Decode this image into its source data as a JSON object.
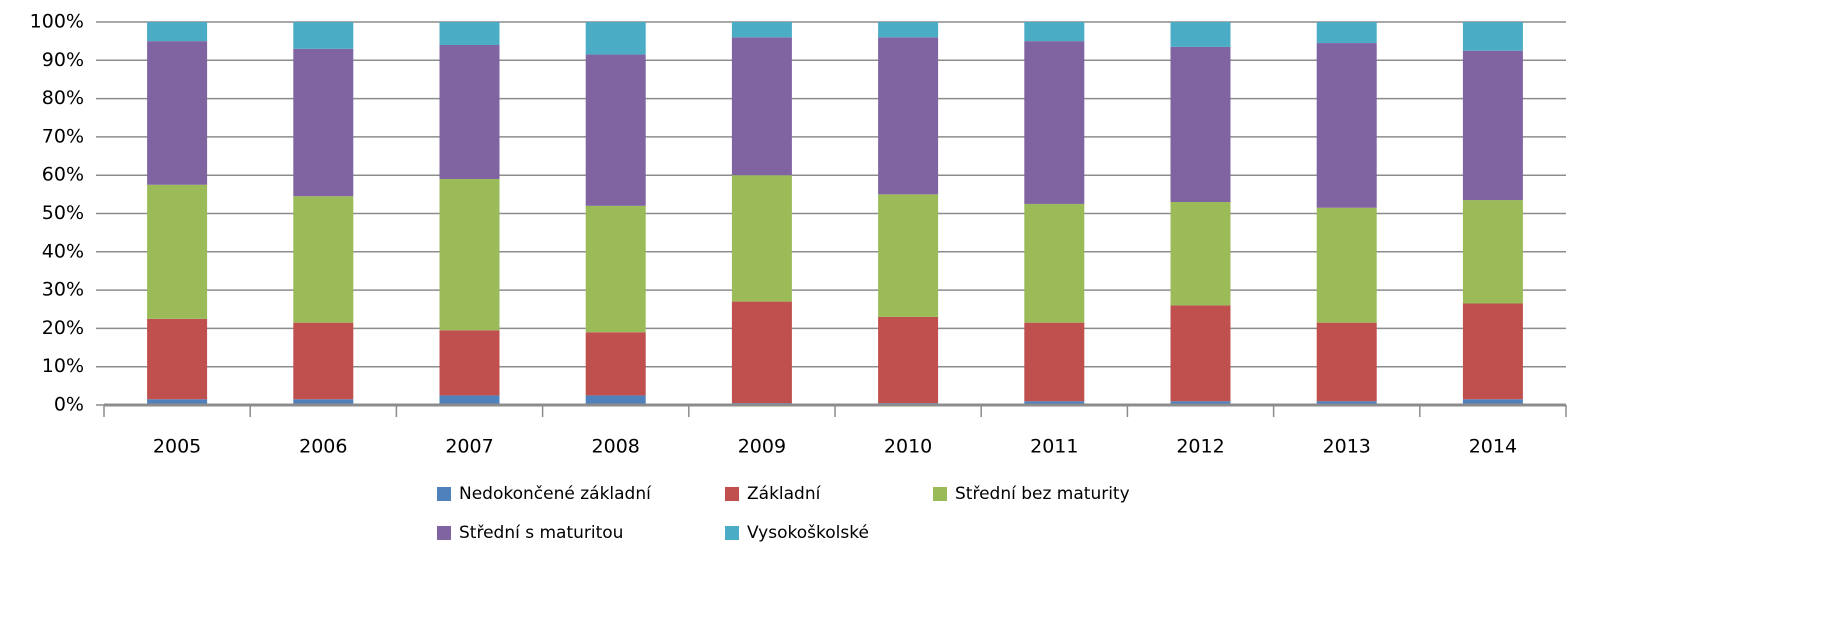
{
  "chart_data": {
    "type": "stacked_bar",
    "categories": [
      "2005",
      "2006",
      "2007",
      "2008",
      "2009",
      "2010",
      "2011",
      "2012",
      "2013",
      "2014"
    ],
    "series": [
      {
        "name": "Nedokončené základní",
        "color": "#4f81bd",
        "values": [
          1.5,
          1.5,
          2.5,
          2.5,
          0.5,
          0.5,
          1,
          1,
          1,
          1.5
        ]
      },
      {
        "name": "Základní",
        "color": "#c0504d",
        "values": [
          21,
          20,
          17,
          16.5,
          26.5,
          22.5,
          20.5,
          25,
          20.5,
          25
        ]
      },
      {
        "name": "Střední bez maturity",
        "color": "#9bbb59",
        "values": [
          35,
          33,
          39.5,
          33,
          33,
          32,
          31,
          27,
          30,
          27
        ]
      },
      {
        "name": "Střední s maturitou",
        "color": "#8064a2",
        "values": [
          37.5,
          38.5,
          35,
          39.5,
          36,
          41,
          42.5,
          40.5,
          43,
          39
        ]
      },
      {
        "name": "Vysokoškolské",
        "color": "#4bacc6",
        "values": [
          5,
          7,
          6,
          8.5,
          4,
          4,
          5,
          6.5,
          5.5,
          7.5
        ]
      }
    ],
    "ylim": [
      0,
      100
    ],
    "yticks": [
      {
        "value": 0,
        "label": "0%"
      },
      {
        "value": 10,
        "label": "10%"
      },
      {
        "value": 20,
        "label": "20%"
      },
      {
        "value": 30,
        "label": "30%"
      },
      {
        "value": 40,
        "label": "40%"
      },
      {
        "value": 50,
        "label": "50%"
      },
      {
        "value": 60,
        "label": "60%"
      },
      {
        "value": 70,
        "label": "70%"
      },
      {
        "value": 80,
        "label": "80%"
      },
      {
        "value": 90,
        "label": "90%"
      },
      {
        "value": 100,
        "label": "100%"
      }
    ],
    "grid": true
  }
}
